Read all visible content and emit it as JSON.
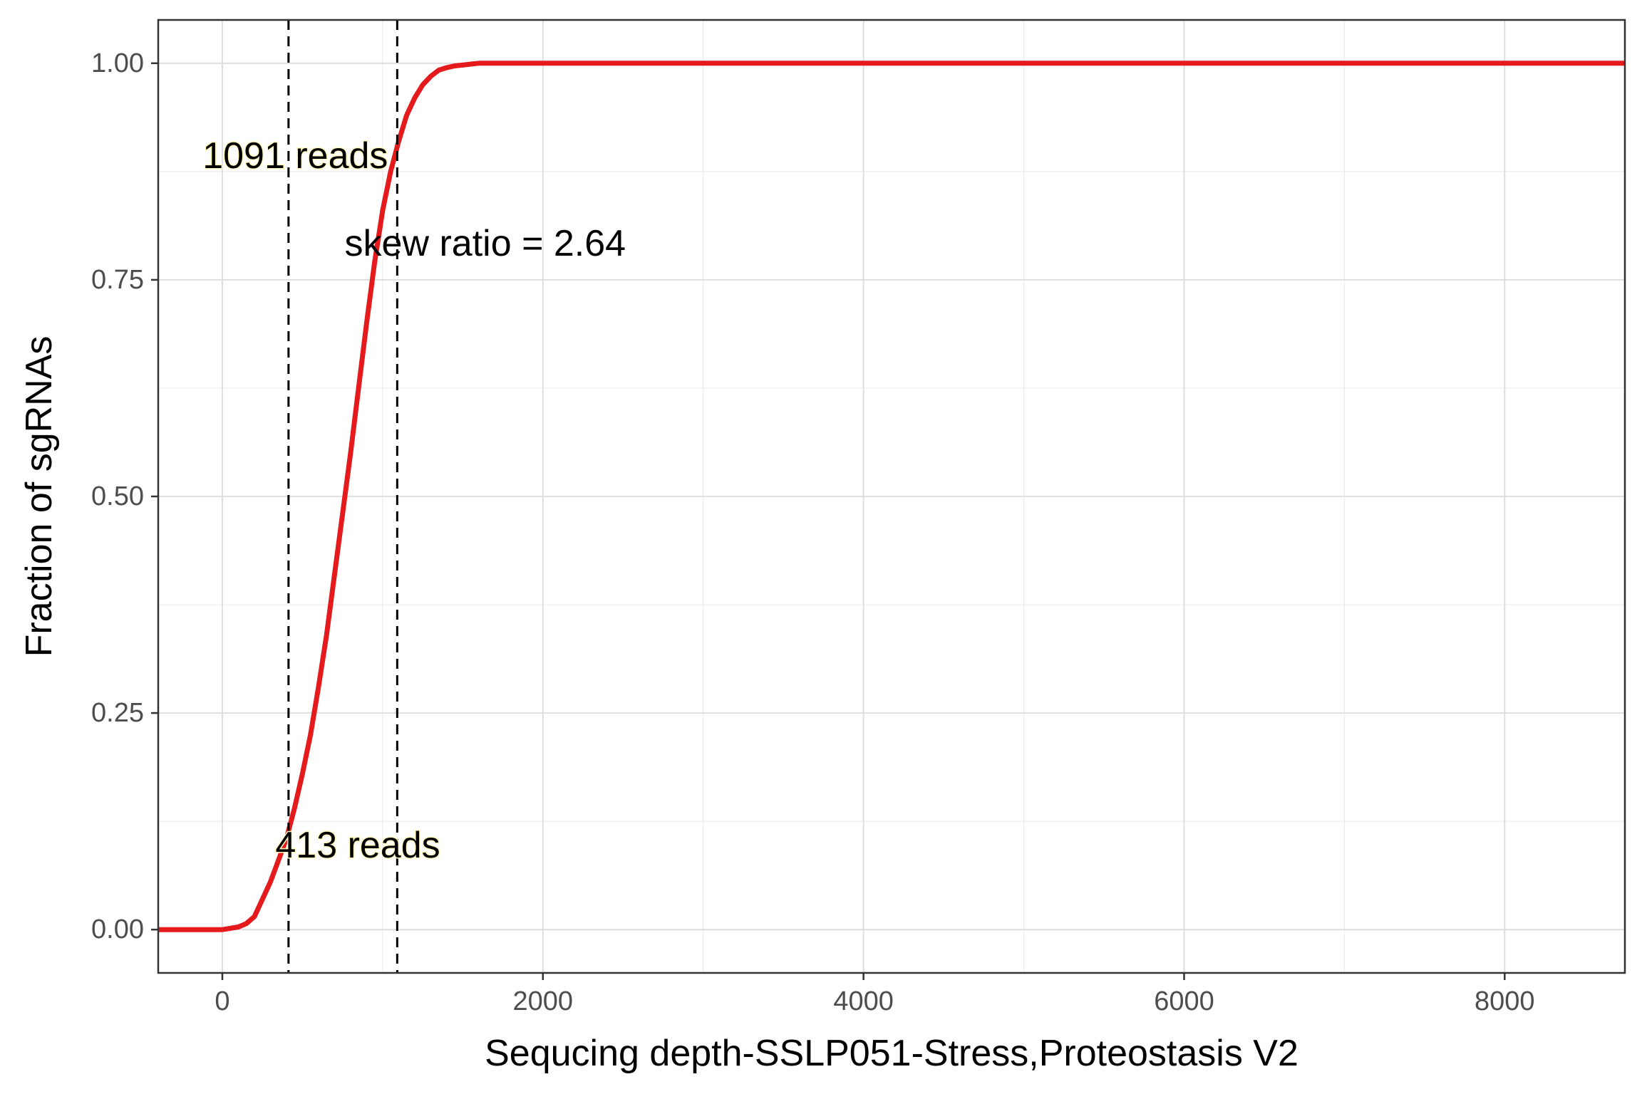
{
  "chart_data": {
    "type": "line",
    "xlabel": "Sequcing depth-SSLP051-Stress,Proteostasis V2",
    "ylabel": "Fraction of sgRNAs",
    "xlim": [
      -400,
      8750
    ],
    "ylim": [
      -0.05,
      1.05
    ],
    "x_ticks": [
      0,
      2000,
      4000,
      6000,
      8000
    ],
    "x_tick_labels": [
      "0",
      "2000",
      "4000",
      "6000",
      "8000"
    ],
    "y_ticks": [
      0,
      0.25,
      0.5,
      0.75,
      1.0
    ],
    "y_tick_labels": [
      "0.00",
      "0.25",
      "0.50",
      "0.75",
      "1.00"
    ],
    "grid": true,
    "series": [
      {
        "color": "#e41a1c",
        "x": [
          -400,
          0,
          100,
          150,
          200,
          250,
          300,
          350,
          400,
          450,
          500,
          550,
          600,
          650,
          700,
          750,
          800,
          850,
          900,
          950,
          1000,
          1050,
          1100,
          1150,
          1200,
          1250,
          1300,
          1350,
          1400,
          1450,
          1500,
          1550,
          1600,
          1800,
          2000,
          4000,
          6000,
          8000,
          8750
        ],
        "y": [
          0,
          0,
          0.003,
          0.007,
          0.015,
          0.035,
          0.055,
          0.08,
          0.105,
          0.14,
          0.18,
          0.225,
          0.28,
          0.34,
          0.41,
          0.48,
          0.55,
          0.625,
          0.7,
          0.77,
          0.83,
          0.875,
          0.91,
          0.94,
          0.96,
          0.975,
          0.985,
          0.992,
          0.995,
          0.997,
          0.998,
          0.999,
          1.0,
          1.0,
          1.0,
          1.0,
          1.0,
          1.0,
          1.0
        ]
      }
    ],
    "vlines": [
      {
        "x": 413,
        "style": "dashed",
        "color": "#000000"
      },
      {
        "x": 1091,
        "style": "dashed",
        "color": "#000000"
      }
    ],
    "annotations": [
      {
        "text": "1091 reads",
        "x": 455,
        "y": 0.893
      },
      {
        "text": "skew ratio = 2.64",
        "x": 1640,
        "y": 0.792
      },
      {
        "text": "413 reads",
        "x": 845,
        "y": 0.097
      }
    ]
  }
}
